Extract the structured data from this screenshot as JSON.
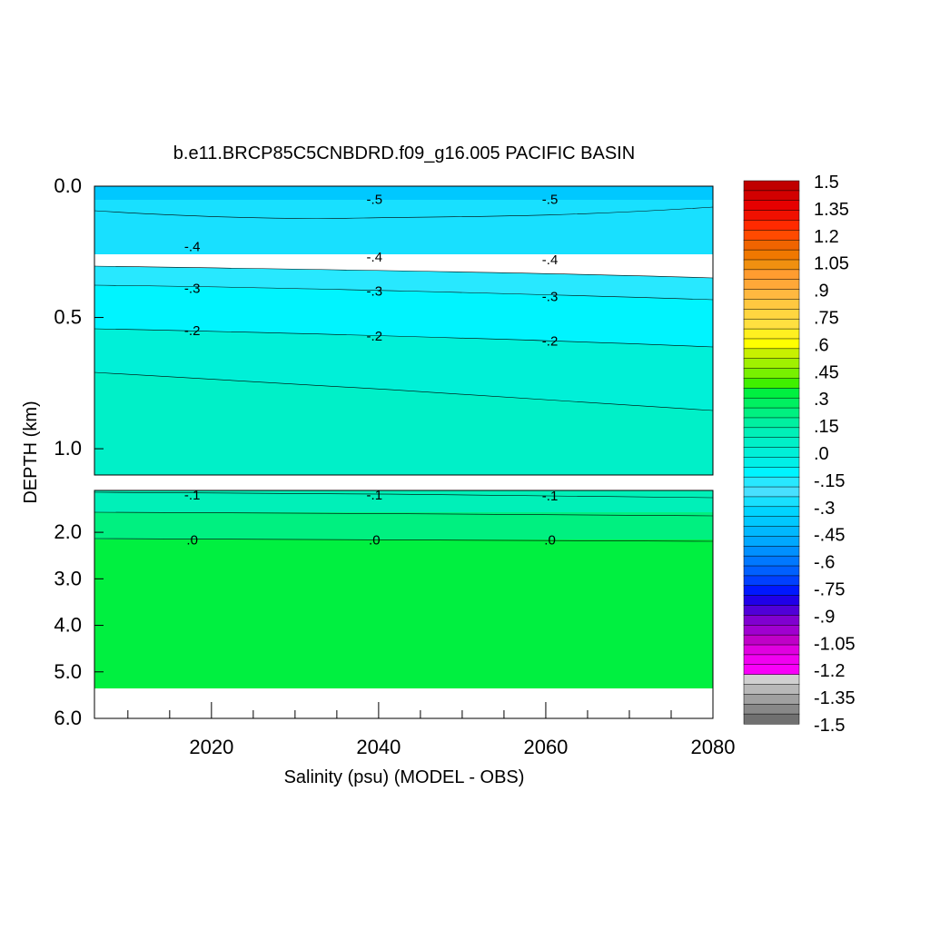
{
  "chart_data": {
    "type": "heatmap",
    "title": "b.e11.BRCP85C5CNBDRD.f09_g16.005 PACIFIC BASIN",
    "xlabel": "Salinity (psu) (MODEL - OBS)",
    "ylabel": "DEPTH (km)",
    "xlim": [
      2006,
      2080
    ],
    "upper_panel": {
      "ylim": [
        0.0,
        1.1
      ],
      "ticks": [
        "0.0",
        "0.5",
        "1.0"
      ]
    },
    "lower_panel": {
      "ylim": [
        1.1,
        6.0
      ],
      "ticks": [
        "2.0",
        "3.0",
        "4.0",
        "5.0",
        "6.0"
      ]
    },
    "x_ticks": [
      "2020",
      "2040",
      "2060",
      "2080"
    ],
    "contour_labels": {
      "upper": [
        {
          "text": "-.5",
          "x": 2039.5,
          "depth": 0.05
        },
        {
          "text": "-.5",
          "x": 2060.5,
          "depth": 0.05
        },
        {
          "text": "-.4",
          "x": 2017.7,
          "depth": 0.23
        },
        {
          "text": "-.4",
          "x": 2039.5,
          "depth": 0.27
        },
        {
          "text": "-.4",
          "x": 2060.5,
          "depth": 0.28
        },
        {
          "text": "-.3",
          "x": 2017.7,
          "depth": 0.39
        },
        {
          "text": "-.3",
          "x": 2039.5,
          "depth": 0.4
        },
        {
          "text": "-.3",
          "x": 2060.5,
          "depth": 0.42
        },
        {
          "text": "-.2",
          "x": 2017.7,
          "depth": 0.55
        },
        {
          "text": "-.2",
          "x": 2039.5,
          "depth": 0.57
        },
        {
          "text": "-.2",
          "x": 2060.5,
          "depth": 0.59
        }
      ],
      "lower": [
        {
          "text": "-.1",
          "x": 2017.7,
          "depth": 1.2
        },
        {
          "text": "-.1",
          "x": 2039.5,
          "depth": 1.2
        },
        {
          "text": "-.1",
          "x": 2060.5,
          "depth": 1.22
        },
        {
          "text": ".0",
          "x": 2017.7,
          "depth": 2.16
        },
        {
          "text": ".0",
          "x": 2039.5,
          "depth": 2.16
        },
        {
          "text": ".0",
          "x": 2060.5,
          "depth": 2.16
        }
      ]
    },
    "colorbar": {
      "range": [
        -1.5,
        1.5
      ],
      "labels": [
        "1.5",
        "1.35",
        "1.2",
        "1.05",
        ".9",
        ".75",
        ".6",
        ".45",
        ".3",
        ".15",
        ".0",
        "-.15",
        "-.3",
        "-.45",
        "-.6",
        "-.75",
        "-.9",
        "-1.05",
        "-1.2",
        "-1.35",
        "-1.5"
      ],
      "colors": [
        "#c00000",
        "#d20000",
        "#e60000",
        "#f01000",
        "#ff2a00",
        "#ff4a00",
        "#f06400",
        "#f07800",
        "#f09010",
        "#ff9c30",
        "#ffa838",
        "#ffb840",
        "#ffc840",
        "#ffd640",
        "#ffe040",
        "#fff020",
        "#ffff00",
        "#c8f000",
        "#a0f000",
        "#78f000",
        "#40f000",
        "#00f040",
        "#00f060",
        "#00f080",
        "#00f0a0",
        "#00f0b8",
        "#00f0c8",
        "#00f0d8",
        "#00f0e8",
        "#00f4ff",
        "#28e8ff",
        "#48e0ff",
        "#18e0ff",
        "#00d4ff",
        "#00c8ff",
        "#00b8ff",
        "#00a8ff",
        "#0090ff",
        "#0078ff",
        "#0060ff",
        "#0040ff",
        "#0018ff",
        "#2000e8",
        "#5000d8",
        "#8000d0",
        "#a000d0",
        "#c000c8",
        "#e000e0",
        "#f000f0",
        "#f800f8",
        "#d0d0d0",
        "#b8b8b8",
        "#a0a0a0",
        "#888888",
        "#707070"
      ]
    }
  }
}
